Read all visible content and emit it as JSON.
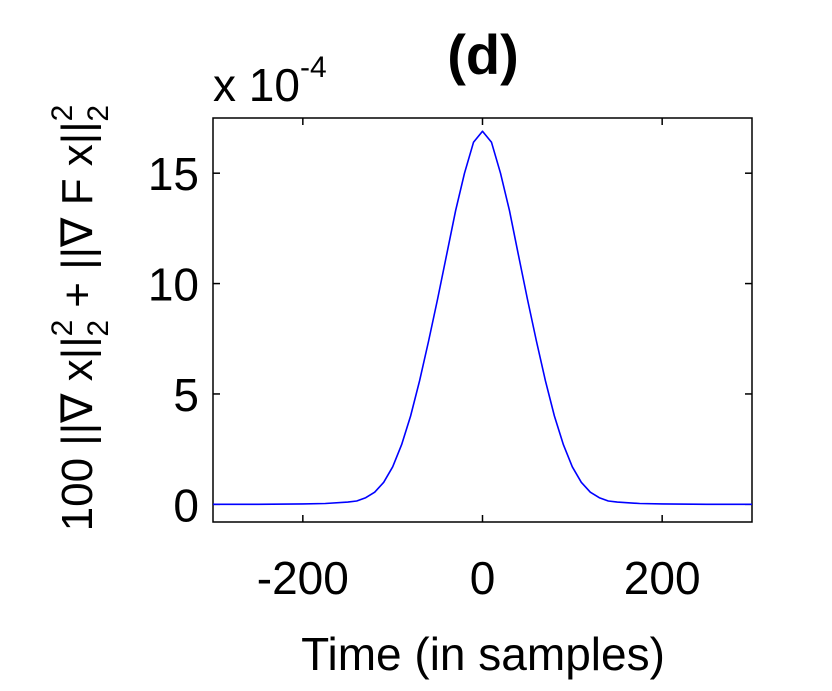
{
  "chart_data": {
    "type": "line",
    "title": "(d)",
    "xlabel": "Time (in samples)",
    "ylabel": {
      "prefix": "100 ||∇ x||",
      "sup1": "2",
      "sub1": "2",
      "middle": " + ||∇ F x||",
      "sup2": "2",
      "sub2": "2"
    },
    "scale_label": {
      "base": "x 10",
      "exponent": "-4"
    },
    "xlim": [
      -300,
      300
    ],
    "ylim": [
      -0.8,
      17.5
    ],
    "x_ticks": [
      -200,
      0,
      200
    ],
    "x_tick_labels": [
      "-200",
      "0",
      "200"
    ],
    "y_ticks": [
      0,
      5,
      10,
      15
    ],
    "y_tick_labels": [
      "0",
      "5",
      "10",
      "15"
    ],
    "series": [
      {
        "name": "curve",
        "color": "#0000ff",
        "x": [
          -300,
          -250,
          -200,
          -175,
          -150,
          -140,
          -130,
          -120,
          -110,
          -100,
          -90,
          -80,
          -70,
          -60,
          -50,
          -40,
          -30,
          -20,
          -10,
          0,
          10,
          20,
          30,
          40,
          50,
          60,
          70,
          80,
          90,
          100,
          110,
          120,
          130,
          140,
          150,
          175,
          200,
          250,
          300
        ],
        "values": [
          0.0,
          0.0,
          0.02,
          0.04,
          0.1,
          0.15,
          0.3,
          0.55,
          1.0,
          1.7,
          2.7,
          4.0,
          5.6,
          7.4,
          9.3,
          11.3,
          13.3,
          15.0,
          16.4,
          16.9,
          16.4,
          15.0,
          13.3,
          11.3,
          9.3,
          7.4,
          5.6,
          4.0,
          2.7,
          1.7,
          1.0,
          0.55,
          0.3,
          0.15,
          0.1,
          0.04,
          0.02,
          0.0,
          0.0
        ]
      }
    ]
  }
}
